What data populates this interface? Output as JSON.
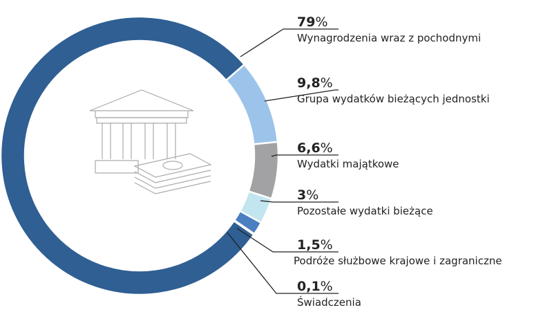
{
  "chart_data": {
    "type": "donut",
    "categories": [
      "Wynagrodzenia wraz z pochodnymi",
      "Grupa wydatków bieżących jednostki",
      "Wydatki majątkowe",
      "Pozostałe wydatki bieżące",
      "Podróże służbowe krajowe i zagraniczne",
      "Świadczenia"
    ],
    "values": [
      79,
      9.8,
      6.6,
      3,
      1.5,
      0.1
    ],
    "value_labels": [
      "79%",
      "9,8%",
      "6,6%",
      "3%",
      "1,5%",
      "0,1%"
    ],
    "colors": [
      "#2f5f93",
      "#9cc4ea",
      "#a2a2a4",
      "#c3e5ef",
      "#4a7fc0",
      "#2a4f7a"
    ]
  }
}
